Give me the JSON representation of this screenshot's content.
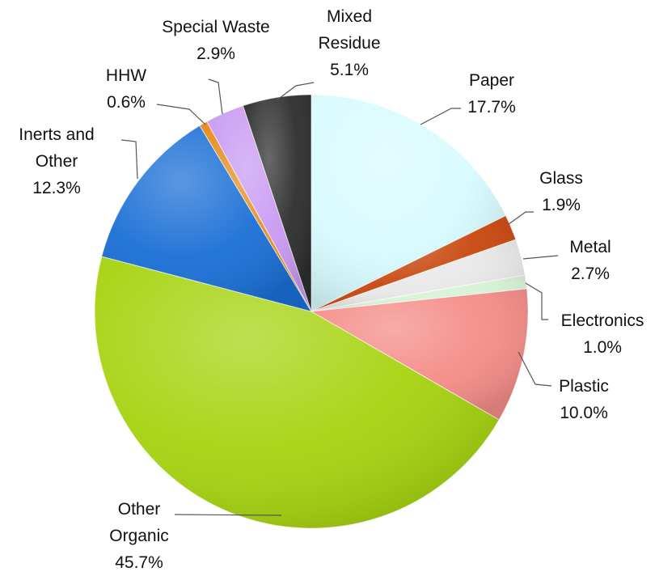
{
  "chart_data": {
    "type": "pie",
    "slices": [
      {
        "label": [
          "Paper"
        ],
        "pct": "17.7%",
        "value": 17.7,
        "color": "#d8fbff"
      },
      {
        "label": [
          "Glass"
        ],
        "pct": "1.9%",
        "value": 1.9,
        "color": "#c8470e"
      },
      {
        "label": [
          "Metal"
        ],
        "pct": "2.7%",
        "value": 2.7,
        "color": "#e8e8e8"
      },
      {
        "label": [
          "Electronics"
        ],
        "pct": "1.0%",
        "value": 1.0,
        "color": "#d6f2d6"
      },
      {
        "label": [
          "Plastic"
        ],
        "pct": "10.0%",
        "value": 10.0,
        "color": "#f48c88"
      },
      {
        "label": [
          "Other",
          "Organic"
        ],
        "pct": "45.7%",
        "value": 45.7,
        "color": "#a6d30f"
      },
      {
        "label": [
          "Inerts and",
          "Other"
        ],
        "pct": "12.3%",
        "value": 12.3,
        "color": "#1a6fd6"
      },
      {
        "label": [
          "HHW"
        ],
        "pct": "0.6%",
        "value": 0.6,
        "color": "#e68a1a"
      },
      {
        "label": [
          "Special Waste"
        ],
        "pct": "2.9%",
        "value": 2.9,
        "color": "#c89af2"
      },
      {
        "label": [
          "Mixed",
          "Residue"
        ],
        "pct": "5.1%",
        "value": 5.1,
        "color": "#2e2e2e"
      }
    ]
  }
}
